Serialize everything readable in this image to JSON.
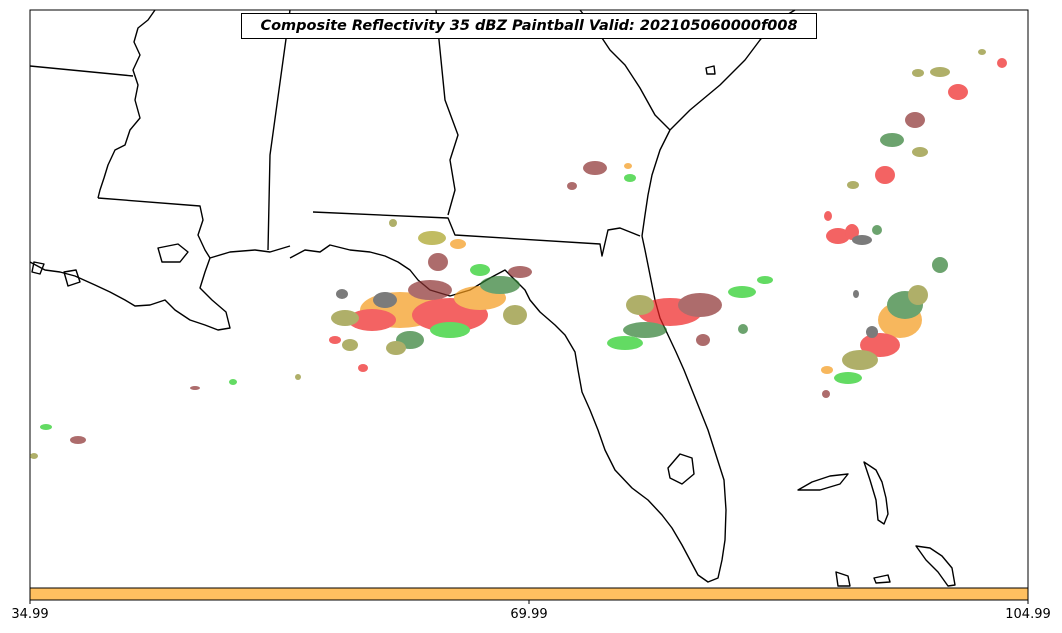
{
  "title": "Composite Reflectivity 35 dBZ Paintball Valid: 202105060000f008",
  "colorbar": {
    "color": "#ffc060",
    "ticks": [
      "34.99",
      "69.99",
      "104.99"
    ]
  },
  "colors": {
    "coast": "#000000",
    "paint_red": "#ee2222",
    "paint_orange": "#f59a1a",
    "paint_green": "#22cc22",
    "paint_darkgreen": "#2e7d32",
    "paint_olive": "#8e8e2a",
    "paint_brown": "#8b2f2f",
    "paint_gray": "#444444"
  }
}
